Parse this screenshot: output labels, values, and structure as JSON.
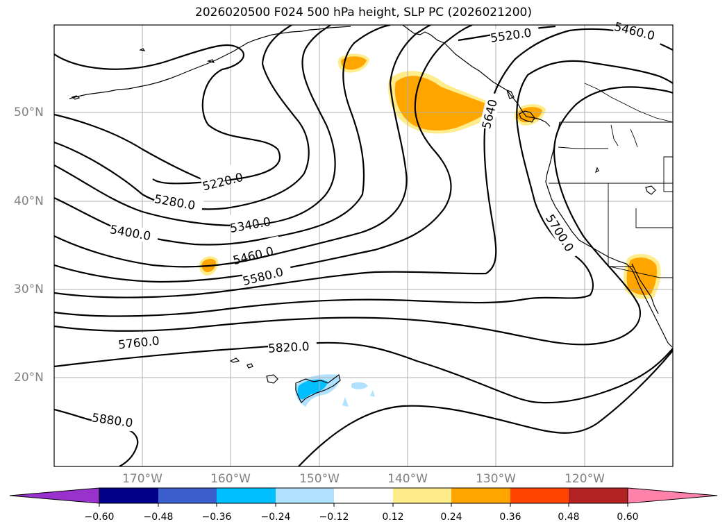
{
  "title": "2026020500 F024 500 hPa height, SLP PC (2026021200)",
  "latitude_labels": [
    "50°N",
    "40°N",
    "30°N",
    "20°N"
  ],
  "longitude_labels": [
    "170°W",
    "160°W",
    "150°W",
    "140°W",
    "130°W",
    "120°W"
  ],
  "contour_labels": [
    "5220.0",
    "5280.0",
    "5340.0",
    "5400.0",
    "5460.0",
    "5580.0",
    "5760.0",
    "5820.0",
    "5880.0",
    "5520.0",
    "5460.0",
    "5640",
    "5700.0"
  ],
  "colorbar": {
    "tick_labels": [
      "−0.60",
      "−0.48",
      "−0.36",
      "−0.24",
      "−0.12",
      "0.12",
      "0.24",
      "0.36",
      "0.48",
      "0.60"
    ],
    "colors": [
      "#9932CC",
      "#00008B",
      "#3A5FCD",
      "#00BFFF",
      "#B0E2FF",
      "#FFFFFF",
      "#FFEC8B",
      "#FFA500",
      "#FF4500",
      "#B22222",
      "#FF82AB"
    ]
  },
  "colors": {
    "land_outline": "#000000",
    "contour": "#000000",
    "grid": "#b0b0b0",
    "positive_light": "#FFEC8B",
    "positive_strong": "#FFA500",
    "negative_light": "#B0E2FF",
    "negative_strong": "#00BFFF"
  }
}
